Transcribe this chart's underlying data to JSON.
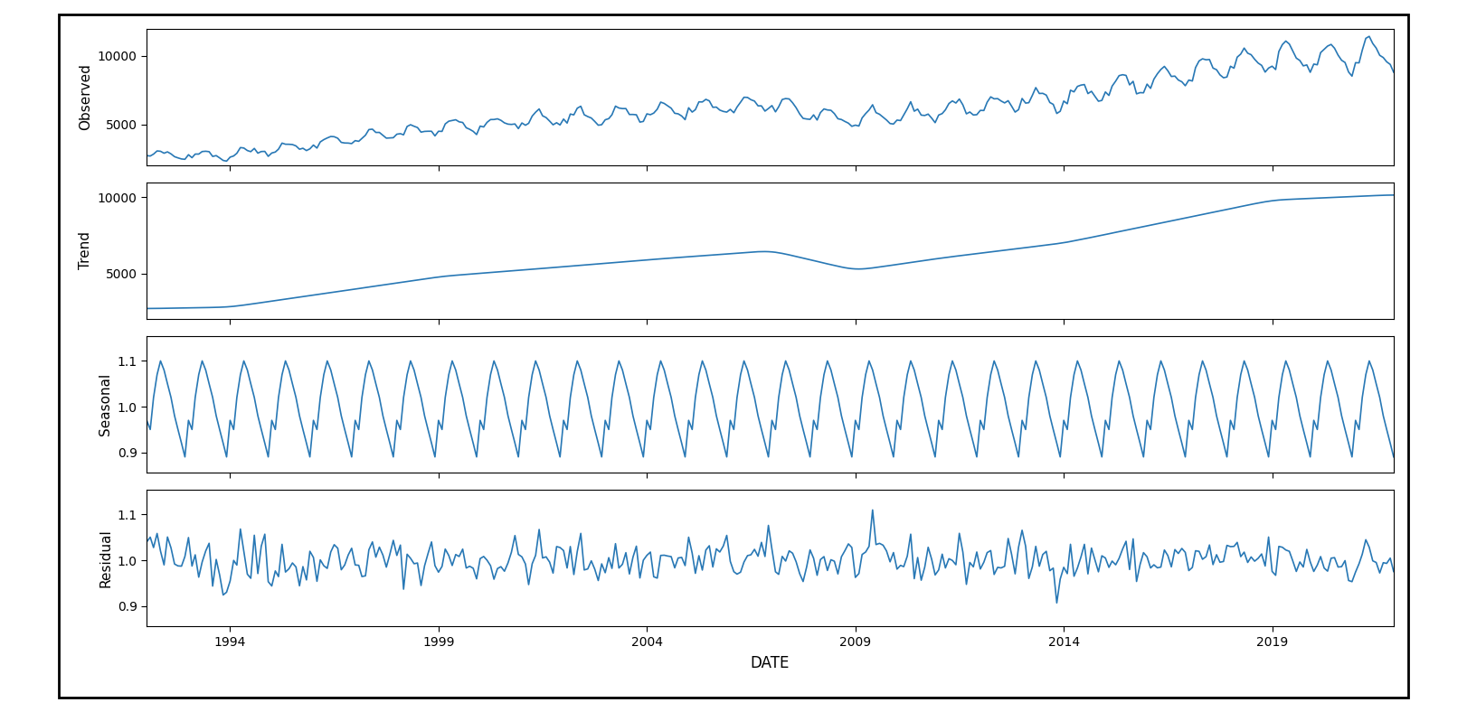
{
  "xlabel": "DATE",
  "ylabels": [
    "Observed",
    "Trend",
    "Seasonal",
    "Residual"
  ],
  "line_color": "#2878b5",
  "line_width": 1.2,
  "background_color": "#ffffff",
  "observed_ylim": [
    2000,
    12000
  ],
  "trend_ylim": [
    2000,
    11000
  ],
  "seasonal_ylim": [
    0.855,
    1.155
  ],
  "residual_ylim": [
    0.855,
    1.155
  ],
  "observed_yticks": [
    5000,
    10000
  ],
  "trend_yticks": [
    5000,
    10000
  ],
  "seasonal_yticks": [
    0.9,
    1.0,
    1.1
  ],
  "residual_yticks": [
    0.9,
    1.0,
    1.1
  ],
  "xtick_years": [
    1994,
    1999,
    2004,
    2009,
    2014,
    2019
  ],
  "start_year": 1992,
  "start_month": 1,
  "n_months": 360
}
